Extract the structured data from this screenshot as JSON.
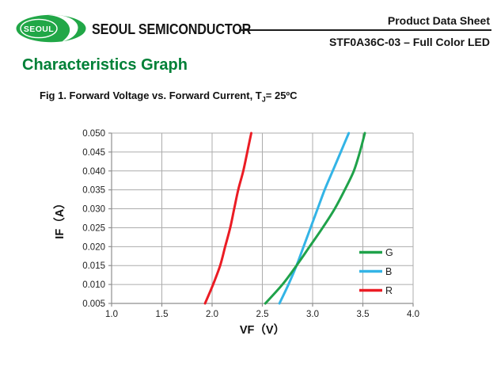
{
  "header": {
    "logo_text": "SEOUL",
    "brand": "SEOUL SEMICONDUCTOR",
    "doc_type": "Product Data Sheet",
    "product": "STF0A36C-03 – Full Color LED"
  },
  "page": {
    "section_title": "Characteristics Graph",
    "figure_caption_prefix": "Fig 1. Forward Voltage vs. Forward Current, T",
    "figure_caption_sub": "J",
    "figure_caption_suffix": "= 25ºC"
  },
  "colors": {
    "brand_green": "#21A747",
    "heading_green": "#008037",
    "grid": "#ACACAC",
    "axis": "#8F8F8F",
    "tick_text": "#1f1f1f",
    "series_g": "#1FA24A",
    "series_b": "#33B4E6",
    "series_r": "#EB1C24"
  },
  "chart_data": {
    "type": "line",
    "title": "Fig 1. Forward Voltage vs. Forward Current, TJ = 25ºC",
    "xlabel": "VF（V）",
    "ylabel": "IF（A）",
    "xlim": [
      1.0,
      4.0
    ],
    "ylim": [
      0.005,
      0.05
    ],
    "x_ticks": [
      1.0,
      1.5,
      2.0,
      2.5,
      3.0,
      3.5,
      4.0
    ],
    "x_tick_labels": [
      "1.0",
      "1.5",
      "2.0",
      "2.5",
      "3.0",
      "3.5",
      "4.0"
    ],
    "y_ticks": [
      0.005,
      0.01,
      0.015,
      0.02,
      0.025,
      0.03,
      0.035,
      0.04,
      0.045,
      0.05
    ],
    "y_tick_labels": [
      "0.005",
      "0.010",
      "0.015",
      "0.020",
      "0.025",
      "0.030",
      "0.035",
      "0.040",
      "0.045",
      "0.050"
    ],
    "grid": true,
    "legend_position": "inside-right",
    "if_values": [
      0.005,
      0.01,
      0.015,
      0.02,
      0.025,
      0.03,
      0.035,
      0.04,
      0.045,
      0.05
    ],
    "series": [
      {
        "name": "G",
        "color": "#1FA24A",
        "draw_order": 2,
        "vf": [
          2.53,
          2.7,
          2.84,
          2.97,
          3.1,
          3.22,
          3.32,
          3.41,
          3.47,
          3.52
        ]
      },
      {
        "name": "B",
        "color": "#33B4E6",
        "draw_order": 1,
        "vf": [
          2.67,
          2.76,
          2.84,
          2.91,
          2.98,
          3.05,
          3.12,
          3.2,
          3.28,
          3.36
        ]
      },
      {
        "name": "R",
        "color": "#EB1C24",
        "draw_order": 3,
        "vf": [
          1.93,
          2.01,
          2.08,
          2.13,
          2.18,
          2.22,
          2.26,
          2.31,
          2.35,
          2.39
        ]
      }
    ]
  }
}
